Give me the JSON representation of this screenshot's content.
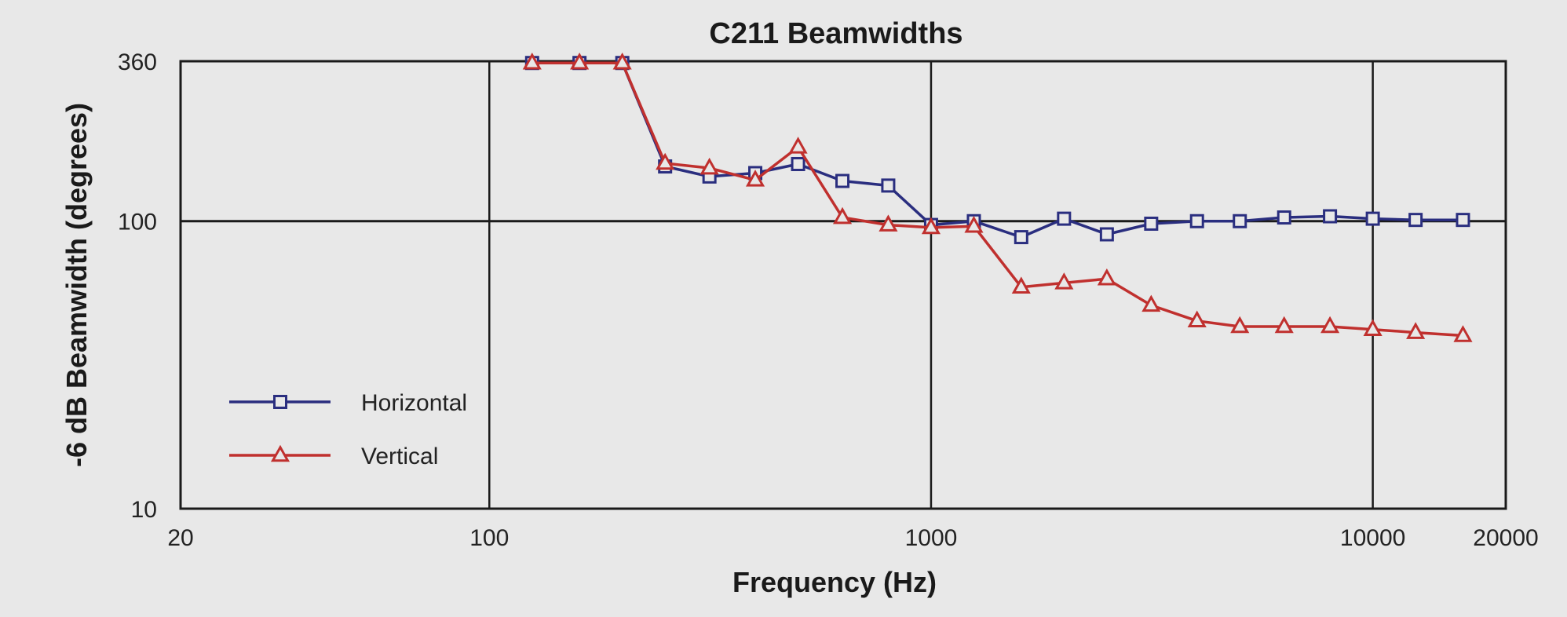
{
  "chart_data": {
    "type": "line",
    "title": "C211 Beamwidths",
    "xlabel": "Frequency (Hz)",
    "ylabel": "-6 dB Beamwidth (degrees)",
    "x_scale": "log",
    "y_scale": "log",
    "xlim": [
      20,
      20000
    ],
    "ylim": [
      10,
      360
    ],
    "x_ticks": [
      20,
      100,
      1000,
      10000,
      20000
    ],
    "x_tick_labels": [
      "20",
      "100",
      "1000",
      "10000",
      "20000"
    ],
    "y_ticks": [
      10,
      100,
      360
    ],
    "y_tick_labels": [
      "10",
      "100",
      "360"
    ],
    "grid": "major lines at x=100, 1000, 10000 and y=100",
    "legend_position": "bottom-left",
    "x": [
      125,
      160,
      200,
      250,
      315,
      400,
      500,
      630,
      800,
      1000,
      1250,
      1600,
      2000,
      2500,
      3150,
      4000,
      5000,
      6300,
      8000,
      10000,
      12500,
      16000
    ],
    "series": [
      {
        "name": "Horizontal",
        "color": "#2a2e7f",
        "marker": "square",
        "values": [
          355,
          355,
          355,
          155,
          143,
          147,
          158,
          138,
          133,
          97,
          100,
          88,
          102,
          90,
          98,
          100,
          100,
          103,
          104,
          102,
          101,
          101
        ]
      },
      {
        "name": "Vertical",
        "color": "#c0302e",
        "marker": "triangle",
        "values": [
          355,
          355,
          355,
          159,
          153,
          139,
          181,
          103,
          97,
          95,
          96,
          59,
          61,
          63,
          51,
          45,
          43,
          43,
          43,
          42,
          41,
          40
        ]
      }
    ]
  }
}
